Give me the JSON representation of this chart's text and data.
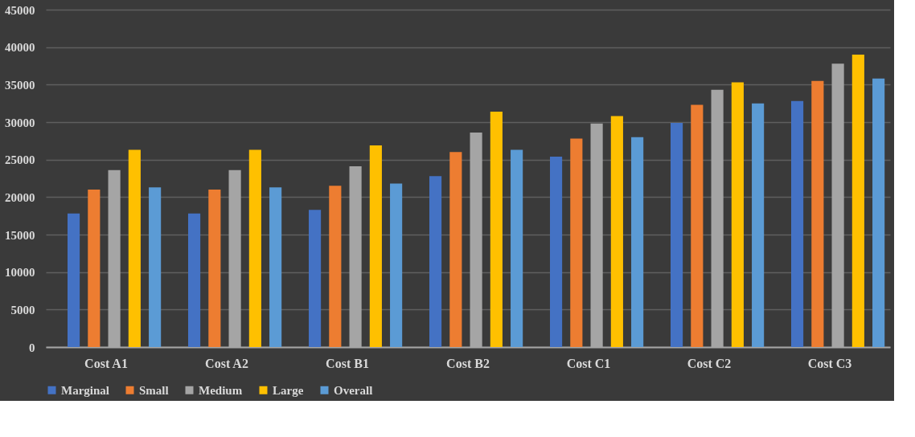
{
  "chart_data": {
    "type": "bar",
    "categories": [
      "Cost A1",
      "Cost A2",
      "Cost B1",
      "Cost B2",
      "Cost C1",
      "Cost C2",
      "Cost C3"
    ],
    "series": [
      {
        "name": "Marginal",
        "color": "#4472c4",
        "values": [
          17800,
          17800,
          18300,
          22800,
          25400,
          29900,
          32800
        ]
      },
      {
        "name": "Small",
        "color": "#ed7d31",
        "values": [
          21000,
          21000,
          21500,
          26000,
          27800,
          32300,
          35500
        ]
      },
      {
        "name": "Medium",
        "color": "#a5a5a5",
        "values": [
          23600,
          23600,
          24100,
          28600,
          29800,
          34300,
          37800
        ]
      },
      {
        "name": "Large",
        "color": "#ffc000",
        "values": [
          26300,
          26300,
          26900,
          31400,
          30800,
          35300,
          39000
        ]
      },
      {
        "name": "Overall",
        "color": "#5b9bd5",
        "values": [
          21300,
          21300,
          21800,
          26300,
          28000,
          32500,
          35800
        ]
      }
    ],
    "ylim": [
      0,
      45000
    ],
    "yticks": [
      0,
      5000,
      10000,
      15000,
      20000,
      25000,
      30000,
      35000,
      40000,
      45000
    ],
    "grid": "y",
    "legend": "bottom"
  }
}
